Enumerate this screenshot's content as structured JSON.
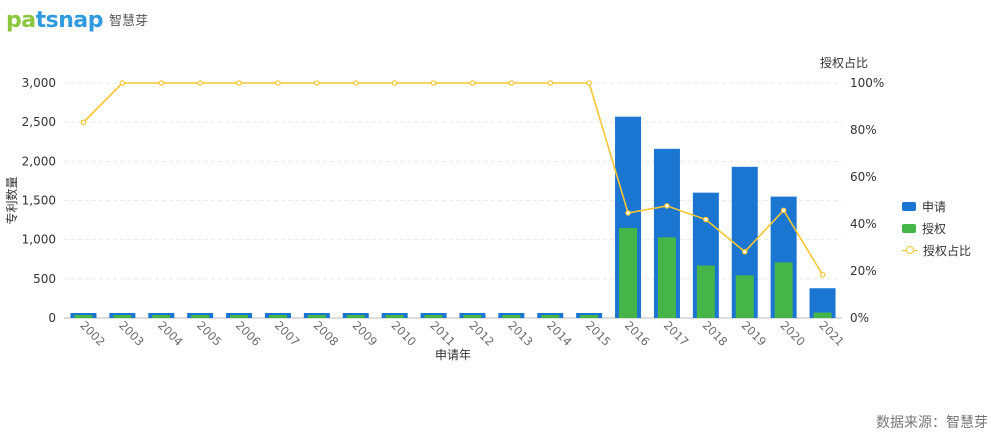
{
  "brand": {
    "logo_text": "patsnap",
    "logo_sub": "智慧芽",
    "logo_letter_colors": [
      "#8cc63f",
      "#8cc63f",
      "#2f9ae0",
      "#2f9ae0",
      "#2f9ae0",
      "#2f9ae0",
      "#2f9ae0"
    ]
  },
  "source_note": "数据来源：智慧芽",
  "colors": {
    "apply": "#1b76d2",
    "grant": "#45b449",
    "ratio": "#f8c533",
    "axis_text": "#6b6b6b",
    "grid": "#e8e8e8"
  },
  "chart_data": {
    "type": "bar",
    "categories": [
      "2002",
      "2003",
      "2004",
      "2005",
      "2006",
      "2007",
      "2008",
      "2009",
      "2010",
      "2011",
      "2012",
      "2013",
      "2014",
      "2015",
      "2016",
      "2017",
      "2018",
      "2019",
      "2020",
      "2021"
    ],
    "series": [
      {
        "name": "申请",
        "type": "bar",
        "axis": "left",
        "values": [
          6,
          5,
          5,
          5,
          5,
          5,
          5,
          5,
          5,
          5,
          5,
          5,
          5,
          5,
          2570,
          2160,
          1600,
          1930,
          1550,
          380
        ]
      },
      {
        "name": "授权",
        "type": "bar",
        "axis": "left",
        "values": [
          5,
          5,
          5,
          5,
          5,
          5,
          5,
          5,
          5,
          5,
          5,
          5,
          5,
          5,
          1150,
          1030,
          670,
          545,
          710,
          70
        ]
      },
      {
        "name": "授权占比",
        "type": "line",
        "axis": "right",
        "values": [
          83.3,
          100,
          100,
          100,
          100,
          100,
          100,
          100,
          100,
          100,
          100,
          100,
          100,
          100,
          44.7,
          47.7,
          41.9,
          28.2,
          45.8,
          18.4
        ]
      }
    ],
    "xlabel": "申请年",
    "ylabel": "专利数量",
    "y2label": "授权占比",
    "ylim": [
      0,
      3000
    ],
    "yticks": [
      "0",
      "500",
      "1,000",
      "1,500",
      "2,000",
      "2,500",
      "3,000"
    ],
    "y2lim": [
      0,
      100
    ],
    "y2ticks": [
      "0%",
      "20%",
      "40%",
      "60%",
      "80%",
      "100%"
    ],
    "grid": true,
    "legend_position": "right"
  }
}
